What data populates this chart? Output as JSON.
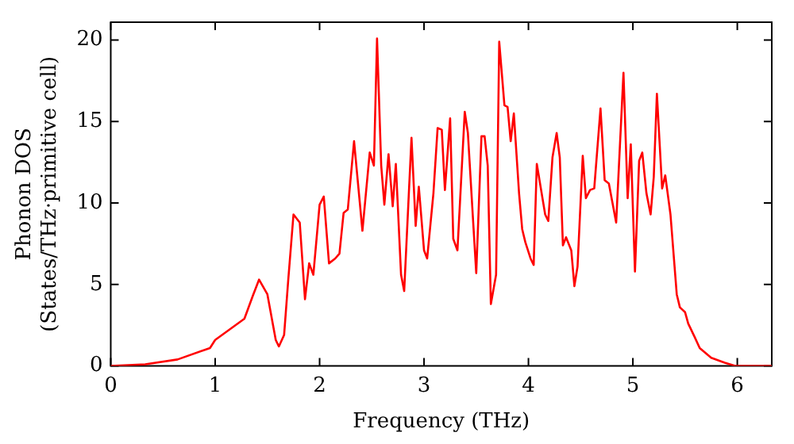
{
  "chart_data": {
    "type": "line",
    "xlabel": "Frequency (THz)",
    "ylabel": "Phonon DOS\n(States/THz·primitive cell)",
    "xlim": [
      0,
      6.33
    ],
    "ylim": [
      0,
      21.1
    ],
    "xticks": [
      0,
      1,
      2,
      3,
      4,
      5,
      6
    ],
    "yticks": [
      0,
      5,
      10,
      15,
      20
    ],
    "grid": false,
    "legend": false,
    "marker": "none",
    "line_style": "solid",
    "series": [
      {
        "color": "#ff0000",
        "x": [
          0,
          0.33,
          0.64,
          0.95,
          1.0,
          1.28,
          1.36,
          1.42,
          1.5,
          1.58,
          1.61,
          1.66,
          1.7,
          1.75,
          1.81,
          1.86,
          1.9,
          1.94,
          2.0,
          2.04,
          2.09,
          2.15,
          2.19,
          2.23,
          2.27,
          2.33,
          2.41,
          2.48,
          2.52,
          2.55,
          2.59,
          2.62,
          2.66,
          2.7,
          2.73,
          2.78,
          2.81,
          2.88,
          2.92,
          2.95,
          3.0,
          3.03,
          3.09,
          3.13,
          3.17,
          3.2,
          3.25,
          3.28,
          3.32,
          3.39,
          3.42,
          3.47,
          3.5,
          3.55,
          3.58,
          3.61,
          3.64,
          3.69,
          3.72,
          3.77,
          3.8,
          3.83,
          3.86,
          3.91,
          3.94,
          3.97,
          4.02,
          4.05,
          4.08,
          4.16,
          4.19,
          4.23,
          4.27,
          4.3,
          4.33,
          4.36,
          4.41,
          4.44,
          4.47,
          4.52,
          4.55,
          4.59,
          4.63,
          4.69,
          4.73,
          4.77,
          4.84,
          4.91,
          4.95,
          4.98,
          5.02,
          5.06,
          5.09,
          5.13,
          5.17,
          5.2,
          5.23,
          5.28,
          5.31,
          5.36,
          5.42,
          5.45,
          5.5,
          5.53,
          5.59,
          5.64,
          5.75,
          5.88,
          5.98,
          6.33
        ],
        "values": [
          0,
          0.1,
          0.4,
          1.1,
          1.6,
          2.9,
          4.3,
          5.3,
          4.4,
          1.6,
          1.2,
          1.9,
          5.3,
          9.3,
          8.8,
          4.1,
          6.3,
          5.6,
          9.9,
          10.4,
          6.3,
          6.6,
          6.9,
          9.4,
          9.6,
          13.8,
          8.3,
          13.1,
          12.3,
          20.1,
          12.3,
          9.9,
          13.0,
          9.8,
          12.4,
          5.6,
          4.6,
          14.0,
          8.6,
          11.0,
          7.1,
          6.6,
          10.6,
          14.6,
          14.5,
          10.8,
          15.2,
          7.8,
          7.1,
          15.6,
          14.3,
          8.9,
          5.7,
          14.1,
          14.1,
          12.3,
          3.8,
          5.6,
          19.9,
          16.0,
          15.9,
          13.8,
          15.5,
          10.6,
          8.4,
          7.6,
          6.6,
          6.2,
          12.4,
          9.3,
          8.9,
          12.8,
          14.3,
          12.8,
          7.4,
          7.9,
          7.1,
          4.9,
          6.1,
          12.9,
          10.3,
          10.8,
          10.9,
          15.8,
          11.4,
          11.2,
          8.8,
          18.0,
          10.3,
          13.6,
          5.8,
          12.6,
          13.1,
          10.6,
          9.3,
          11.6,
          16.7,
          10.9,
          11.7,
          9.3,
          4.4,
          3.6,
          3.3,
          2.6,
          1.8,
          1.1,
          0.5,
          0.2,
          0,
          0
        ]
      }
    ]
  }
}
